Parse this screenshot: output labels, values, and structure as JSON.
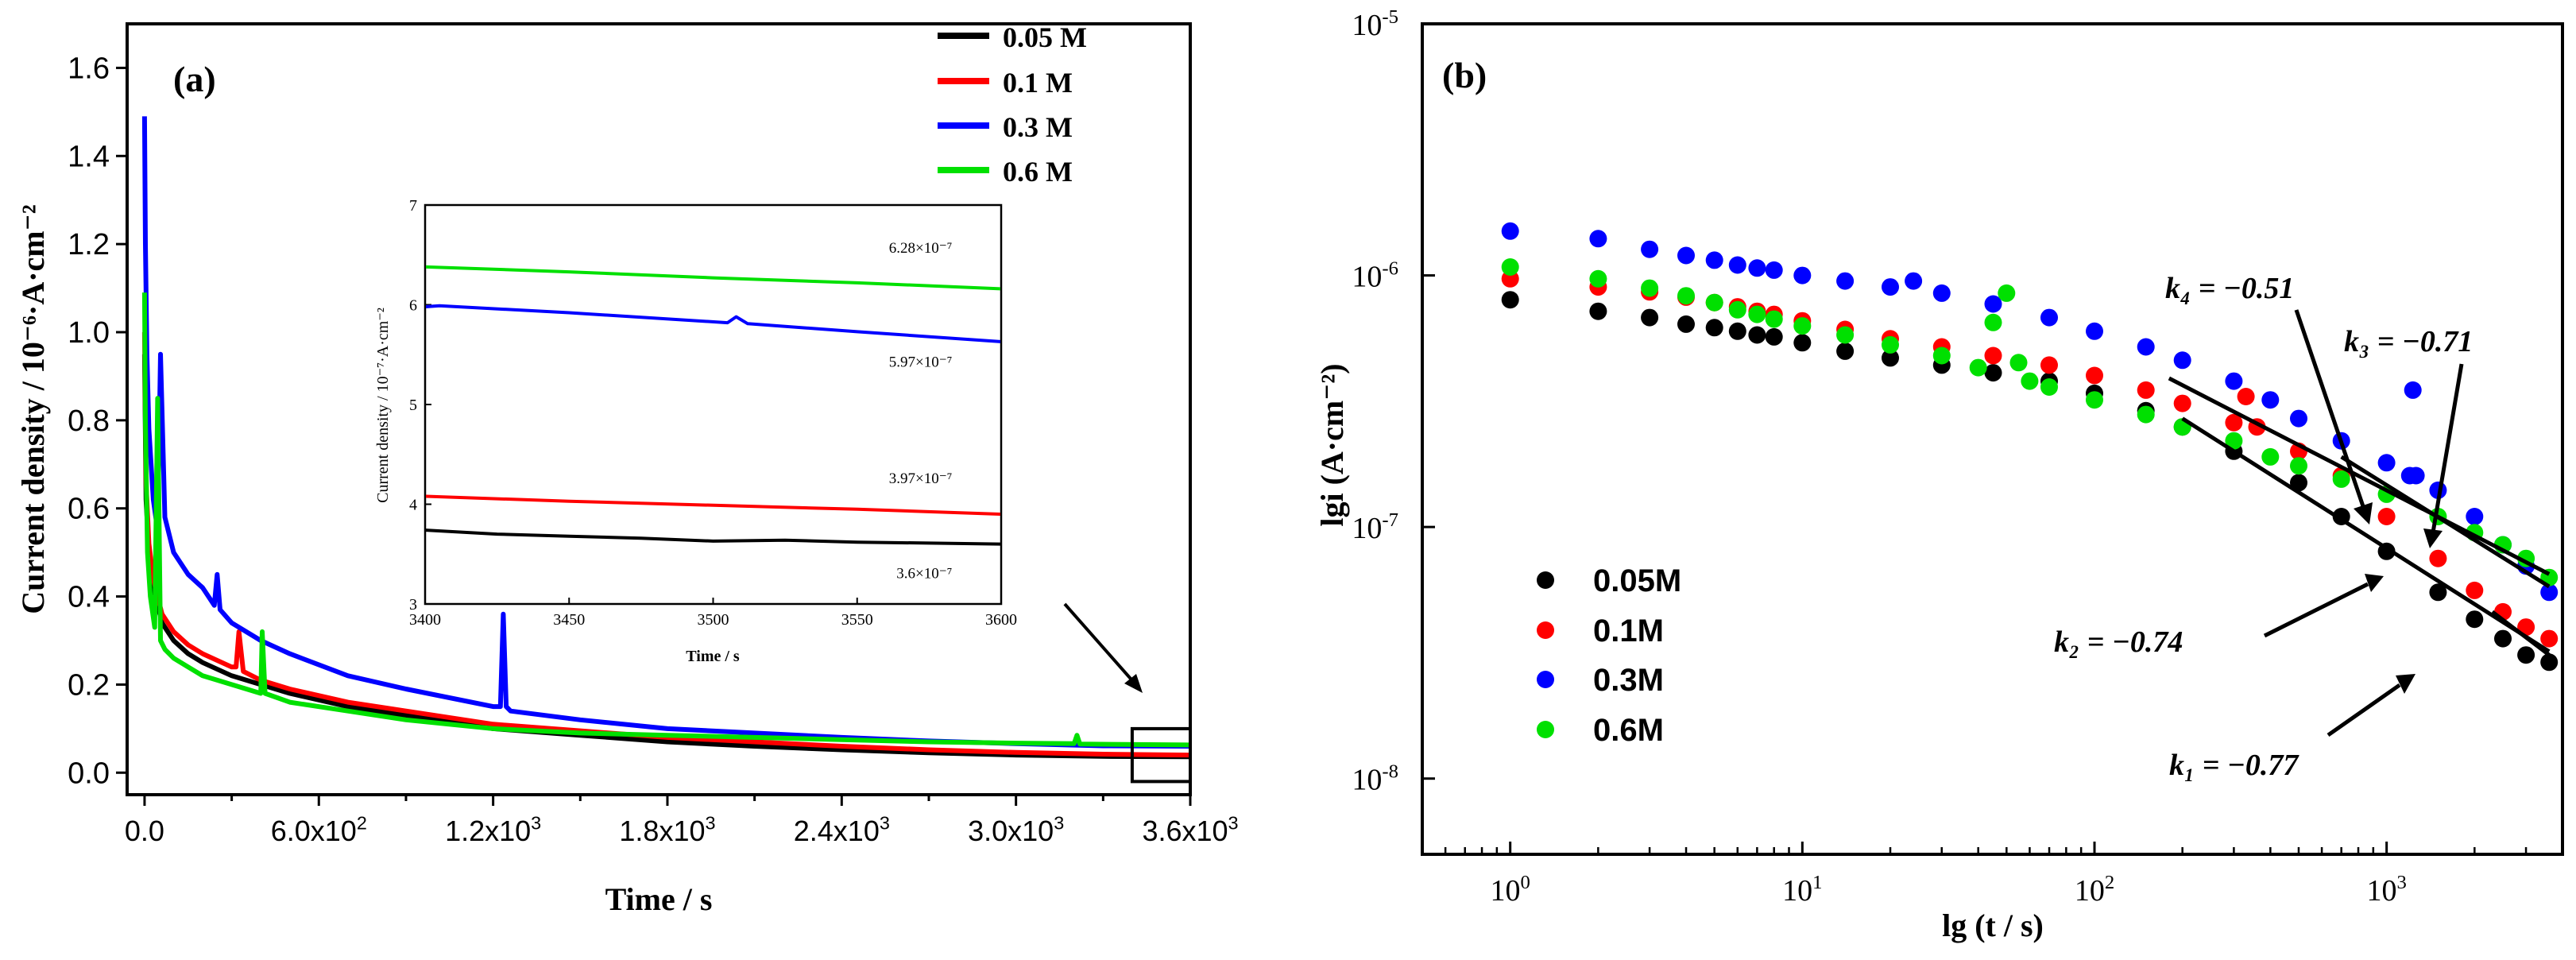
{
  "chart_data": [
    {
      "panel_label": "(a)",
      "type": "line",
      "xlabel": "Time / s",
      "ylabel": "Current density / 10⁻⁶·A·cm⁻²",
      "xlim": [
        -60,
        3600
      ],
      "ylim": [
        -0.05,
        1.7
      ],
      "x_ticks": [
        0,
        600,
        1200,
        1800,
        2400,
        3000,
        3600
      ],
      "x_tick_labels": [
        "0.0",
        "6.0x10",
        "1.2x10",
        "1.8x10",
        "2.4x10",
        "3.0x10",
        "3.6x10"
      ],
      "x_tick_exponents": [
        "",
        "2",
        "3",
        "3",
        "3",
        "3",
        "3"
      ],
      "y_ticks": [
        0.0,
        0.2,
        0.4,
        0.6,
        0.8,
        1.0,
        1.2,
        1.4,
        1.6
      ],
      "y_tick_labels": [
        "0.0",
        "0.2",
        "0.4",
        "0.6",
        "0.8",
        "1.0",
        "1.2",
        "1.4",
        "1.6"
      ],
      "legend_location": "top-right",
      "series": [
        {
          "name": "0.05 M",
          "color": "#000000",
          "x": [
            0,
            5,
            15,
            30,
            60,
            100,
            150,
            200,
            300,
            400,
            500,
            700,
            900,
            1200,
            1500,
            1800,
            2100,
            2400,
            2700,
            3000,
            3300,
            3600
          ],
          "y": [
            0.95,
            0.62,
            0.5,
            0.42,
            0.34,
            0.3,
            0.27,
            0.25,
            0.22,
            0.2,
            0.18,
            0.15,
            0.13,
            0.1,
            0.085,
            0.07,
            0.06,
            0.052,
            0.045,
            0.04,
            0.037,
            0.036
          ]
        },
        {
          "name": "0.1 M",
          "color": "#ff0000",
          "x": [
            0,
            5,
            15,
            30,
            60,
            100,
            150,
            200,
            300,
            315,
            325,
            340,
            400,
            500,
            700,
            900,
            1200,
            1500,
            1800,
            2100,
            2400,
            2700,
            3000,
            3300,
            3600
          ],
          "y": [
            1.0,
            0.66,
            0.52,
            0.44,
            0.36,
            0.32,
            0.29,
            0.27,
            0.24,
            0.24,
            0.32,
            0.23,
            0.21,
            0.19,
            0.16,
            0.14,
            0.11,
            0.095,
            0.08,
            0.07,
            0.06,
            0.052,
            0.046,
            0.042,
            0.04
          ]
        },
        {
          "name": "0.3 M",
          "color": "#0000ff",
          "x": [
            0,
            3,
            8,
            15,
            30,
            45,
            55,
            70,
            100,
            150,
            200,
            240,
            250,
            260,
            300,
            400,
            500,
            700,
            900,
            1200,
            1225,
            1235,
            1245,
            1260,
            1500,
            1800,
            2100,
            2400,
            2700,
            3000,
            3300,
            3600
          ],
          "y": [
            1.49,
            1.2,
            0.95,
            0.78,
            0.62,
            0.55,
            0.95,
            0.58,
            0.5,
            0.45,
            0.42,
            0.38,
            0.45,
            0.37,
            0.34,
            0.3,
            0.27,
            0.22,
            0.19,
            0.15,
            0.15,
            0.36,
            0.15,
            0.14,
            0.12,
            0.1,
            0.09,
            0.08,
            0.072,
            0.066,
            0.061,
            0.06
          ]
        },
        {
          "name": "0.6 M",
          "color": "#00e000",
          "x": [
            0,
            3,
            10,
            20,
            35,
            45,
            55,
            70,
            100,
            150,
            200,
            300,
            400,
            405,
            415,
            500,
            700,
            900,
            1200,
            1500,
            1800,
            2100,
            2400,
            2700,
            3000,
            3200,
            3210,
            3220,
            3600
          ],
          "y": [
            1.09,
            0.8,
            0.5,
            0.4,
            0.33,
            0.85,
            0.3,
            0.28,
            0.26,
            0.24,
            0.22,
            0.2,
            0.18,
            0.32,
            0.18,
            0.16,
            0.14,
            0.12,
            0.1,
            0.09,
            0.085,
            0.08,
            0.075,
            0.07,
            0.067,
            0.066,
            0.085,
            0.065,
            0.063
          ]
        }
      ],
      "zoom_box_x": [
        3400,
        3600
      ],
      "inset": {
        "xlabel": "Time / s",
        "ylabel": "Current density / 10⁻⁷·A·cm⁻²",
        "xlim": [
          3400,
          3600
        ],
        "ylim": [
          3,
          7
        ],
        "x_ticks": [
          3400,
          3450,
          3500,
          3550,
          3600
        ],
        "x_tick_labels": [
          "3400",
          "3450",
          "3500",
          "3550",
          "3600"
        ],
        "y_ticks": [
          3,
          4,
          5,
          6,
          7
        ],
        "y_tick_labels": [
          "3",
          "4",
          "5",
          "6",
          "7"
        ],
        "series": [
          {
            "name": "0.6 M",
            "color": "#00e000",
            "x": [
              3400,
              3450,
              3500,
              3550,
              3600
            ],
            "y": [
              6.38,
              6.33,
              6.27,
              6.22,
              6.16
            ]
          },
          {
            "name": "0.3 M",
            "color": "#0000ff",
            "x": [
              3400,
              3405,
              3450,
              3505,
              3508,
              3512,
              3550,
              3600
            ],
            "y": [
              5.98,
              5.99,
              5.92,
              5.82,
              5.88,
              5.81,
              5.73,
              5.63
            ]
          },
          {
            "name": "0.1 M",
            "color": "#ff0000",
            "x": [
              3400,
              3450,
              3500,
              3550,
              3600
            ],
            "y": [
              4.08,
              4.03,
              3.99,
              3.95,
              3.9
            ]
          },
          {
            "name": "0.05 M",
            "color": "#000000",
            "x": [
              3400,
              3425,
              3450,
              3475,
              3500,
              3525,
              3550,
              3575,
              3600
            ],
            "y": [
              3.74,
              3.7,
              3.68,
              3.66,
              3.63,
              3.64,
              3.62,
              3.61,
              3.6
            ]
          }
        ],
        "annotations": [
          {
            "text": "6.28×10⁻⁷",
            "x": 3583,
            "y": 6.52
          },
          {
            "text": "5.97×10⁻⁷",
            "x": 3583,
            "y": 5.38
          },
          {
            "text": "3.97×10⁻⁷",
            "x": 3583,
            "y": 4.21
          },
          {
            "text": "3.6×10⁻⁷",
            "x": 3583,
            "y": 3.26
          }
        ]
      }
    },
    {
      "panel_label": "(b)",
      "type": "scatter",
      "x_scale": "log",
      "y_scale": "log",
      "xlabel": "lg (t / s)",
      "ylabel": "lgi (A·cm⁻²)",
      "xlim": [
        0.5,
        4000
      ],
      "ylim": [
        5e-09,
        1e-05
      ],
      "x_ticks": [
        1,
        10,
        100,
        1000
      ],
      "x_tick_labels": [
        "10",
        "10",
        "10",
        "10"
      ],
      "x_tick_exponents": [
        "0",
        "1",
        "2",
        "3"
      ],
      "y_ticks": [
        1e-08,
        1e-07,
        1e-06,
        1e-05
      ],
      "y_tick_labels": [
        "10",
        "10",
        "10",
        "10"
      ],
      "y_tick_exponents": [
        "-8",
        "-7",
        "-6",
        "-5"
      ],
      "legend_location": "bottom-left",
      "series": [
        {
          "name": "0.05M",
          "color": "#000000",
          "x": [
            1,
            2,
            3,
            4,
            5,
            6,
            7,
            8,
            10,
            14,
            20,
            30,
            45,
            70,
            100,
            150,
            200,
            300,
            500,
            700,
            1000,
            1500,
            2000,
            2500,
            3000,
            3600
          ],
          "y": [
            8e-07,
            7.2e-07,
            6.8e-07,
            6.4e-07,
            6.2e-07,
            6e-07,
            5.8e-07,
            5.7e-07,
            5.4e-07,
            5e-07,
            4.7e-07,
            4.4e-07,
            4.1e-07,
            3.8e-07,
            3.4e-07,
            2.9e-07,
            2.5e-07,
            2e-07,
            1.5e-07,
            1.1e-07,
            8e-08,
            5.5e-08,
            4.3e-08,
            3.6e-08,
            3.1e-08,
            2.9e-08
          ]
        },
        {
          "name": "0.1M",
          "color": "#ff0000",
          "x": [
            1,
            2,
            3,
            4,
            5,
            6,
            7,
            8,
            10,
            14,
            20,
            30,
            45,
            70,
            100,
            150,
            200,
            300,
            330,
            360,
            500,
            700,
            1000,
            1500,
            2000,
            2500,
            3000,
            3600
          ],
          "y": [
            9.7e-07,
            9e-07,
            8.6e-07,
            8.2e-07,
            7.8e-07,
            7.5e-07,
            7.2e-07,
            7e-07,
            6.6e-07,
            6.1e-07,
            5.6e-07,
            5.2e-07,
            4.8e-07,
            4.4e-07,
            4e-07,
            3.5e-07,
            3.1e-07,
            2.6e-07,
            3.3e-07,
            2.5e-07,
            2e-07,
            1.6e-07,
            1.1e-07,
            7.5e-08,
            5.6e-08,
            4.6e-08,
            4e-08,
            3.6e-08
          ]
        },
        {
          "name": "0.3M",
          "color": "#0000ff",
          "x": [
            1,
            2,
            3,
            4,
            5,
            6,
            7,
            8,
            10,
            14,
            20,
            24,
            30,
            45,
            70,
            100,
            150,
            200,
            300,
            400,
            500,
            700,
            1000,
            1200,
            1230,
            1260,
            1500,
            2000,
            2500,
            3000,
            3600
          ],
          "y": [
            1.5e-06,
            1.4e-06,
            1.27e-06,
            1.2e-06,
            1.15e-06,
            1.1e-06,
            1.07e-06,
            1.05e-06,
            1e-06,
            9.5e-07,
            9e-07,
            9.5e-07,
            8.5e-07,
            7.7e-07,
            6.8e-07,
            6e-07,
            5.2e-07,
            4.6e-07,
            3.8e-07,
            3.2e-07,
            2.7e-07,
            2.2e-07,
            1.8e-07,
            1.6e-07,
            3.5e-07,
            1.6e-07,
            1.4e-07,
            1.1e-07,
            8.5e-08,
            7e-08,
            5.5e-08
          ]
        },
        {
          "name": "0.6M",
          "color": "#00e000",
          "x": [
            1,
            2,
            3,
            4,
            5,
            6,
            7,
            8,
            10,
            14,
            20,
            30,
            40,
            45,
            50,
            55,
            60,
            70,
            100,
            150,
            200,
            300,
            400,
            500,
            700,
            1000,
            1500,
            2000,
            2500,
            3000,
            3600
          ],
          "y": [
            1.08e-06,
            9.7e-07,
            8.9e-07,
            8.3e-07,
            7.8e-07,
            7.3e-07,
            7e-07,
            6.7e-07,
            6.3e-07,
            5.8e-07,
            5.3e-07,
            4.8e-07,
            4.3e-07,
            6.5e-07,
            8.5e-07,
            4.5e-07,
            3.8e-07,
            3.6e-07,
            3.2e-07,
            2.8e-07,
            2.5e-07,
            2.2e-07,
            1.9e-07,
            1.75e-07,
            1.55e-07,
            1.35e-07,
            1.1e-07,
            9.5e-08,
            8.5e-08,
            7.5e-08,
            6.3e-08
          ]
        }
      ],
      "fit_lines": [
        {
          "label": "k₁ = −0.77",
          "x": [
            2300,
            3600
          ],
          "y": [
            4.6e-08,
            3.1e-08
          ]
        },
        {
          "label": "k₂ = −0.74",
          "x": [
            200,
            3600
          ],
          "y": [
            2.7e-07,
            3.2e-08
          ]
        },
        {
          "label": "k₃ = −0.71",
          "x": [
            700,
            3600
          ],
          "y": [
            1.9e-07,
            5.8e-08
          ]
        },
        {
          "label": "k₄ = −0.51",
          "x": [
            180,
            3600
          ],
          "y": [
            3.9e-07,
            6.5e-08
          ]
        }
      ],
      "annotations": [
        {
          "text": "k₄ = −0.51"
        },
        {
          "text": "k₃ = −0.71"
        },
        {
          "text": "k₂ = −0.74"
        },
        {
          "text": "k₁ = −0.77"
        }
      ]
    }
  ]
}
